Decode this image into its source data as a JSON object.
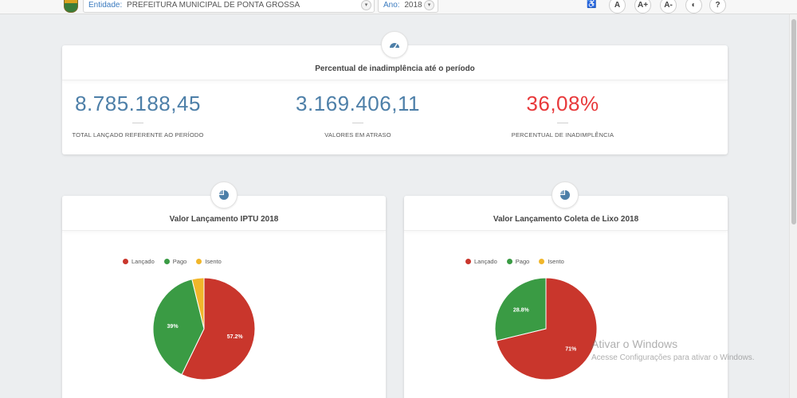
{
  "topbar": {
    "entity_label": "Entidade:",
    "entity_value": "PREFEITURA MUNICIPAL DE PONTA GROSSA",
    "year_label": "Ano:",
    "year_value": "2018",
    "tools": {
      "accessibility": "♿",
      "font_normal": "A",
      "font_increase": "A+",
      "font_decrease": "A-",
      "contrast": "◐",
      "help": "?"
    }
  },
  "summary": {
    "title": "Percentual de inadimplência até o período",
    "stats": [
      {
        "value": "8.785.188,45",
        "caption": "TOTAL LANÇADO REFERENTE AO PERÍODO"
      },
      {
        "value": "3.169.406,11",
        "caption": "VALORES EM ATRASO"
      },
      {
        "value": "36,08%",
        "caption": "PERCENTUAL DE INADIMPLÊNCIA"
      }
    ]
  },
  "colors": {
    "lancado": "#c9362c",
    "pago": "#3a9b44",
    "isento": "#f1b62a",
    "accent": "#4d7fa8",
    "alert": "#e8393b"
  },
  "chart_data": [
    {
      "type": "pie",
      "title": "Valor Lançamento IPTU 2018",
      "legend": [
        "Lançado",
        "Pago",
        "Isento"
      ],
      "legend_position": "top-left",
      "values": [
        57.2,
        39.0,
        3.8
      ],
      "labels": [
        "57.2%",
        "39%",
        ""
      ]
    },
    {
      "type": "pie",
      "title": "Valor Lançamento Coleta de Lixo 2018",
      "legend": [
        "Lançado",
        "Pago",
        "Isento"
      ],
      "legend_position": "top-left",
      "values": [
        71.2,
        28.8,
        0
      ],
      "labels": [
        "71%",
        "28.8%",
        ""
      ]
    }
  ],
  "watermark": {
    "line1": "Ativar o Windows",
    "line2": "Acesse Configurações para ativar o Windows."
  }
}
